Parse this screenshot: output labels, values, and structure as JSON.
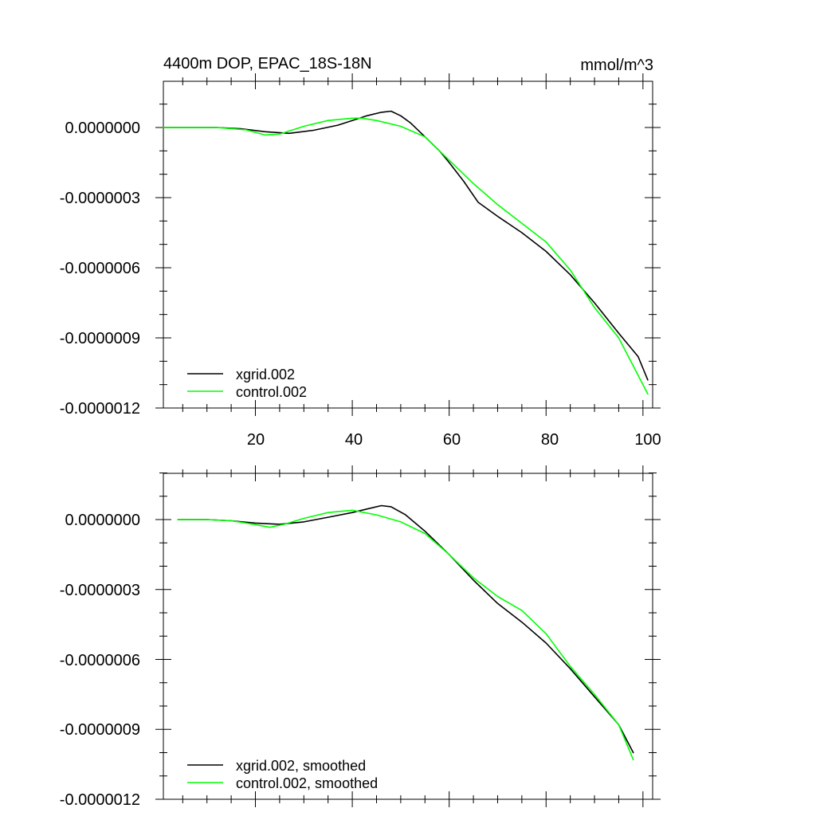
{
  "chart_data": [
    {
      "type": "line",
      "title": "4400m DOP, EPAC_18S-18N",
      "units": "mmol/m^3",
      "xlabel": "",
      "ylabel": "",
      "xlim": [
        1,
        102
      ],
      "ylim": [
        -1.2e-06,
        2e-07
      ],
      "x_ticks": [
        20,
        40,
        60,
        80,
        100
      ],
      "x_tick_labels": [
        "20",
        "40",
        "60",
        "80",
        "100"
      ],
      "y_ticks": [
        0,
        -3e-07,
        -6e-07,
        -9e-07,
        -1.2e-06
      ],
      "y_tick_labels": [
        "0.0000000",
        "-0.0000003",
        "-0.0000006",
        "-0.0000009",
        "-0.0000012"
      ],
      "legend_position": "bottom-left",
      "series": [
        {
          "name": "xgrid.002",
          "color": "#000000",
          "points": [
            [
              1,
              0
            ],
            [
              12,
              0
            ],
            [
              17,
              -5e-09
            ],
            [
              22,
              -1.8e-08
            ],
            [
              27,
              -2.5e-08
            ],
            [
              32,
              -1.2e-08
            ],
            [
              37,
              1e-08
            ],
            [
              40,
              3e-08
            ],
            [
              43,
              5e-08
            ],
            [
              46,
              6.5e-08
            ],
            [
              48,
              7e-08
            ],
            [
              50,
              5e-08
            ],
            [
              52,
              2e-08
            ],
            [
              55,
              -4e-08
            ],
            [
              58,
              -1e-07
            ],
            [
              60,
              -1.5e-07
            ],
            [
              63,
              -2.3e-07
            ],
            [
              66,
              -3.2e-07
            ],
            [
              70,
              -3.8e-07
            ],
            [
              75,
              -4.5e-07
            ],
            [
              80,
              -5.3e-07
            ],
            [
              85,
              -6.3e-07
            ],
            [
              90,
              -7.5e-07
            ],
            [
              95,
              -8.8e-07
            ],
            [
              99,
              -9.8e-07
            ],
            [
              101,
              -1.08e-06
            ]
          ]
        },
        {
          "name": "control.002",
          "color": "#00ff00",
          "points": [
            [
              1,
              0
            ],
            [
              12,
              0
            ],
            [
              18,
              -1e-08
            ],
            [
              22,
              -3.2e-08
            ],
            [
              25,
              -2.8e-08
            ],
            [
              30,
              5e-09
            ],
            [
              35,
              3e-08
            ],
            [
              40,
              4e-08
            ],
            [
              42,
              4e-08
            ],
            [
              45,
              3e-08
            ],
            [
              50,
              5e-09
            ],
            [
              55,
              -4e-08
            ],
            [
              60,
              -1.4e-07
            ],
            [
              65,
              -2.4e-07
            ],
            [
              70,
              -3.3e-07
            ],
            [
              75,
              -4.1e-07
            ],
            [
              80,
              -4.9e-07
            ],
            [
              85,
              -6.1e-07
            ],
            [
              90,
              -7.7e-07
            ],
            [
              95,
              -9e-07
            ],
            [
              98,
              -1.02e-06
            ],
            [
              101,
              -1.14e-06
            ]
          ]
        }
      ]
    },
    {
      "type": "line",
      "title": "",
      "units": "",
      "xlabel": "",
      "ylabel": "",
      "xlim": [
        1,
        102
      ],
      "ylim": [
        -1.2e-06,
        2e-07
      ],
      "x_ticks": [
        20,
        40,
        60,
        80,
        100
      ],
      "x_tick_labels": [
        "",
        "",
        "",
        "",
        ""
      ],
      "y_ticks": [
        0,
        -3e-07,
        -6e-07,
        -9e-07,
        -1.2e-06
      ],
      "y_tick_labels": [
        "0.0000000",
        "-0.0000003",
        "-0.0000006",
        "-0.0000009",
        "-0.0000012"
      ],
      "legend_position": "bottom-left",
      "series": [
        {
          "name": "xgrid.002, smoothed",
          "color": "#000000",
          "points": [
            [
              4,
              0
            ],
            [
              10,
              0
            ],
            [
              15,
              -5e-09
            ],
            [
              20,
              -1.5e-08
            ],
            [
              25,
              -2e-08
            ],
            [
              30,
              -1e-08
            ],
            [
              35,
              1e-08
            ],
            [
              40,
              3e-08
            ],
            [
              43,
              4.5e-08
            ],
            [
              46,
              6e-08
            ],
            [
              48,
              5.5e-08
            ],
            [
              51,
              2e-08
            ],
            [
              55,
              -5e-08
            ],
            [
              60,
              -1.5e-07
            ],
            [
              65,
              -2.6e-07
            ],
            [
              70,
              -3.6e-07
            ],
            [
              75,
              -4.4e-07
            ],
            [
              80,
              -5.3e-07
            ],
            [
              85,
              -6.4e-07
            ],
            [
              90,
              -7.6e-07
            ],
            [
              95,
              -8.8e-07
            ],
            [
              98,
              -1e-06
            ]
          ]
        },
        {
          "name": "control.002, smoothed",
          "color": "#00ff00",
          "points": [
            [
              4,
              0
            ],
            [
              10,
              0
            ],
            [
              15,
              -5e-09
            ],
            [
              19,
              -1.8e-08
            ],
            [
              23,
              -3.3e-08
            ],
            [
              26,
              -2e-08
            ],
            [
              30,
              5e-09
            ],
            [
              35,
              3e-08
            ],
            [
              40,
              4e-08
            ],
            [
              45,
              2e-08
            ],
            [
              50,
              -1e-08
            ],
            [
              55,
              -6e-08
            ],
            [
              60,
              -1.5e-07
            ],
            [
              65,
              -2.5e-07
            ],
            [
              70,
              -3.3e-07
            ],
            [
              75,
              -3.9e-07
            ],
            [
              80,
              -4.9e-07
            ],
            [
              85,
              -6.3e-07
            ],
            [
              90,
              -7.5e-07
            ],
            [
              95,
              -8.8e-07
            ],
            [
              98,
              -1.03e-06
            ]
          ]
        }
      ]
    }
  ]
}
